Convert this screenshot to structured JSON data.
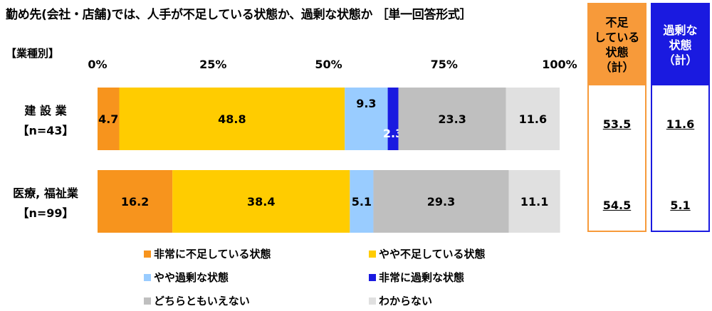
{
  "title": "勤め先(会社・店舗)では、人手が不足している状態か、過剰な状態か ［単一回答形式］",
  "subtitle": "【業種別】",
  "colors": {
    "very_short": "#F7941D",
    "some_short": "#FFCC00",
    "some_excess": "#99CCFF",
    "very_excess": "#1A1AE0",
    "neither": "#BFBFBF",
    "dont_know": "#E0E0E0",
    "shortage_box": "#F79A3A",
    "excess_box": "#1A1AE0"
  },
  "chart_data": {
    "type": "bar",
    "orientation": "horizontal",
    "stacked": true,
    "xlim": [
      0,
      100
    ],
    "xticks": [
      "0%",
      "25%",
      "50%",
      "75%",
      "100%"
    ],
    "categories": [
      {
        "name": "建 設 業",
        "n": "【n=43】"
      },
      {
        "name": "医療, 福祉業",
        "n": "【n=99】"
      }
    ],
    "series": [
      {
        "name": "非常に不足している状態",
        "key": "very_short",
        "values": [
          4.7,
          16.2
        ]
      },
      {
        "name": "やや不足している状態",
        "key": "some_short",
        "values": [
          48.8,
          38.4
        ]
      },
      {
        "name": "やや過剰な状態",
        "key": "some_excess",
        "values": [
          9.3,
          5.1
        ]
      },
      {
        "name": "非常に過剰な状態",
        "key": "very_excess",
        "values": [
          2.3,
          0
        ]
      },
      {
        "name": "どちらともいえない",
        "key": "neither",
        "values": [
          23.3,
          29.3
        ]
      },
      {
        "name": "わからない",
        "key": "dont_know",
        "values": [
          11.6,
          11.1
        ]
      }
    ],
    "labels": [
      [
        "4.7",
        "48.8",
        "9.3",
        "2.3",
        "23.3",
        "11.6"
      ],
      [
        "16.2",
        "38.4",
        "5.1",
        "",
        "29.3",
        "11.1"
      ]
    ],
    "grid": false,
    "legend_position": "bottom"
  },
  "summary": {
    "shortage": {
      "header": "不足\nしている\n状態\n（計）",
      "values": [
        "53.5",
        "54.5"
      ]
    },
    "excess": {
      "header": "過剰な\n状態\n（計）",
      "values": [
        "11.6",
        "5.1"
      ]
    }
  }
}
